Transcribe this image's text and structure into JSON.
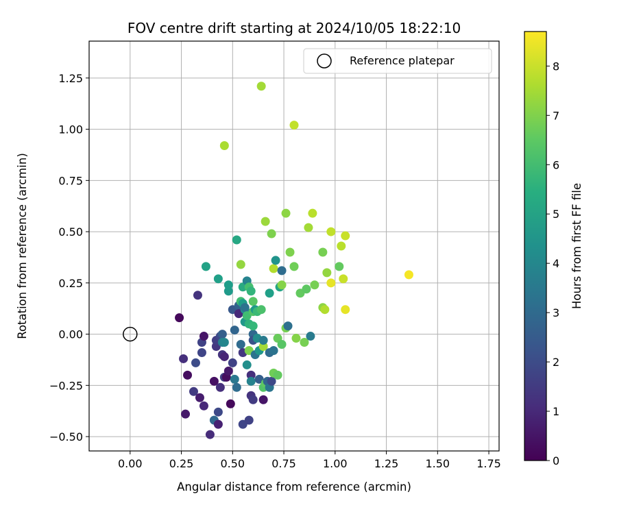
{
  "chart_data": {
    "type": "scatter",
    "title": "FOV centre drift starting at 2024/10/05 18:22:10",
    "xlabel": "Angular distance from reference (arcmin)",
    "ylabel": "Rotation from reference (arcmin)",
    "xlim": [
      -0.2,
      1.8
    ],
    "ylim": [
      -0.57,
      1.43
    ],
    "xticks": [
      "0.00",
      "0.25",
      "0.50",
      "0.75",
      "1.00",
      "1.25",
      "1.50",
      "1.75"
    ],
    "yticks": [
      "−0.50",
      "−0.25",
      "0.00",
      "0.25",
      "0.50",
      "0.75",
      "1.00",
      "1.25"
    ],
    "grid": true,
    "legend": {
      "position": "top-right",
      "label": "Reference platepar",
      "marker": "open-circle"
    },
    "reference_point": {
      "x": 0.0,
      "y": 0.0
    },
    "colorbar": {
      "label": "Hours from first FF file",
      "range": [
        0,
        8.7
      ],
      "ticks": [
        "0",
        "1",
        "2",
        "3",
        "4",
        "5",
        "6",
        "7",
        "8"
      ],
      "colormap": "viridis"
    },
    "points": [
      {
        "x": 0.24,
        "y": 0.08,
        "h": 0.2
      },
      {
        "x": 0.26,
        "y": -0.12,
        "h": 1.2
      },
      {
        "x": 0.27,
        "y": -0.39,
        "h": 0.6
      },
      {
        "x": 0.28,
        "y": -0.2,
        "h": 0.3
      },
      {
        "x": 0.31,
        "y": -0.28,
        "h": 1.5
      },
      {
        "x": 0.32,
        "y": -0.14,
        "h": 2.0
      },
      {
        "x": 0.33,
        "y": 0.19,
        "h": 1.3
      },
      {
        "x": 0.34,
        "y": -0.31,
        "h": 0.7
      },
      {
        "x": 0.35,
        "y": -0.09,
        "h": 1.8
      },
      {
        "x": 0.35,
        "y": -0.04,
        "h": 1.7
      },
      {
        "x": 0.36,
        "y": -0.01,
        "h": 0.5
      },
      {
        "x": 0.36,
        "y": -0.35,
        "h": 1.0
      },
      {
        "x": 0.37,
        "y": 0.33,
        "h": 5.0
      },
      {
        "x": 0.39,
        "y": -0.49,
        "h": 1.1
      },
      {
        "x": 0.41,
        "y": -0.23,
        "h": 0.4
      },
      {
        "x": 0.41,
        "y": -0.42,
        "h": 2.9
      },
      {
        "x": 0.42,
        "y": -0.06,
        "h": 1.4
      },
      {
        "x": 0.42,
        "y": -0.03,
        "h": 1.6
      },
      {
        "x": 0.43,
        "y": -0.38,
        "h": 1.9
      },
      {
        "x": 0.43,
        "y": -0.44,
        "h": 0.8
      },
      {
        "x": 0.43,
        "y": 0.27,
        "h": 4.9
      },
      {
        "x": 0.44,
        "y": -0.26,
        "h": 1.2
      },
      {
        "x": 0.44,
        "y": -0.01,
        "h": 1.9
      },
      {
        "x": 0.45,
        "y": -0.1,
        "h": 1.3
      },
      {
        "x": 0.45,
        "y": 0.0,
        "h": 2.6
      },
      {
        "x": 0.45,
        "y": -0.04,
        "h": 3.8
      },
      {
        "x": 0.46,
        "y": 0.92,
        "h": 7.6
      },
      {
        "x": 0.46,
        "y": -0.04,
        "h": 4.0
      },
      {
        "x": 0.46,
        "y": -0.11,
        "h": 0.9
      },
      {
        "x": 0.46,
        "y": -0.21,
        "h": 1.6
      },
      {
        "x": 0.47,
        "y": -0.21,
        "h": 0.3
      },
      {
        "x": 0.48,
        "y": 0.21,
        "h": 4.7
      },
      {
        "x": 0.48,
        "y": 0.24,
        "h": 4.8
      },
      {
        "x": 0.48,
        "y": -0.18,
        "h": 0.6
      },
      {
        "x": 0.49,
        "y": -0.34,
        "h": 0.2
      },
      {
        "x": 0.5,
        "y": 0.12,
        "h": 2.4
      },
      {
        "x": 0.5,
        "y": -0.14,
        "h": 1.7
      },
      {
        "x": 0.51,
        "y": 0.02,
        "h": 2.8
      },
      {
        "x": 0.51,
        "y": -0.22,
        "h": 3.5
      },
      {
        "x": 0.52,
        "y": -0.26,
        "h": 3.1
      },
      {
        "x": 0.52,
        "y": 0.46,
        "h": 5.2
      },
      {
        "x": 0.53,
        "y": 0.14,
        "h": 2.7
      },
      {
        "x": 0.53,
        "y": 0.1,
        "h": 1.0
      },
      {
        "x": 0.54,
        "y": 0.34,
        "h": 7.3
      },
      {
        "x": 0.54,
        "y": -0.05,
        "h": 3.0
      },
      {
        "x": 0.54,
        "y": 0.16,
        "h": 6.0
      },
      {
        "x": 0.55,
        "y": 0.15,
        "h": 4.8
      },
      {
        "x": 0.55,
        "y": 0.23,
        "h": 5.3
      },
      {
        "x": 0.55,
        "y": -0.09,
        "h": 1.4
      },
      {
        "x": 0.55,
        "y": -0.44,
        "h": 1.8
      },
      {
        "x": 0.56,
        "y": 0.06,
        "h": 5.5
      },
      {
        "x": 0.56,
        "y": 0.12,
        "h": 4.2
      },
      {
        "x": 0.56,
        "y": 0.06,
        "h": 4.6
      },
      {
        "x": 0.56,
        "y": 0.13,
        "h": 3.3
      },
      {
        "x": 0.57,
        "y": 0.26,
        "h": 3.9
      },
      {
        "x": 0.57,
        "y": 0.09,
        "h": 6.0
      },
      {
        "x": 0.57,
        "y": -0.15,
        "h": 4.3
      },
      {
        "x": 0.58,
        "y": 0.05,
        "h": 5.6
      },
      {
        "x": 0.58,
        "y": -0.08,
        "h": 7.0
      },
      {
        "x": 0.58,
        "y": -0.42,
        "h": 1.7
      },
      {
        "x": 0.58,
        "y": 0.23,
        "h": 6.1
      },
      {
        "x": 0.59,
        "y": 0.21,
        "h": 5.7
      },
      {
        "x": 0.59,
        "y": -0.2,
        "h": 1.2
      },
      {
        "x": 0.59,
        "y": -0.23,
        "h": 3.9
      },
      {
        "x": 0.59,
        "y": -0.3,
        "h": 1.3
      },
      {
        "x": 0.6,
        "y": 0.0,
        "h": 2.9
      },
      {
        "x": 0.6,
        "y": 0.11,
        "h": 6.3
      },
      {
        "x": 0.6,
        "y": -0.32,
        "h": 1.5
      },
      {
        "x": 0.6,
        "y": 0.16,
        "h": 6.4
      },
      {
        "x": 0.6,
        "y": 0.04,
        "h": 5.8
      },
      {
        "x": 0.6,
        "y": -0.03,
        "h": 2.2
      },
      {
        "x": 0.61,
        "y": -0.1,
        "h": 3.3
      },
      {
        "x": 0.61,
        "y": 0.12,
        "h": 4.7
      },
      {
        "x": 0.62,
        "y": -0.02,
        "h": 4.2
      },
      {
        "x": 0.62,
        "y": 0.11,
        "h": 5.9
      },
      {
        "x": 0.63,
        "y": -0.08,
        "h": 4.6
      },
      {
        "x": 0.63,
        "y": -0.22,
        "h": 2.6
      },
      {
        "x": 0.64,
        "y": 1.21,
        "h": 7.5
      },
      {
        "x": 0.64,
        "y": 0.12,
        "h": 6.2
      },
      {
        "x": 0.65,
        "y": -0.06,
        "h": 7.5
      },
      {
        "x": 0.65,
        "y": -0.26,
        "h": 6.3
      },
      {
        "x": 0.65,
        "y": -0.03,
        "h": 3.6
      },
      {
        "x": 0.65,
        "y": -0.32,
        "h": 0.5
      },
      {
        "x": 0.66,
        "y": 0.55,
        "h": 7.4
      },
      {
        "x": 0.66,
        "y": -0.24,
        "h": 6.5
      },
      {
        "x": 0.67,
        "y": -0.23,
        "h": 2.8
      },
      {
        "x": 0.68,
        "y": 0.2,
        "h": 4.9
      },
      {
        "x": 0.68,
        "y": -0.26,
        "h": 3.4
      },
      {
        "x": 0.68,
        "y": -0.09,
        "h": 3.0
      },
      {
        "x": 0.69,
        "y": 0.49,
        "h": 7.0
      },
      {
        "x": 0.69,
        "y": -0.23,
        "h": 1.9
      },
      {
        "x": 0.7,
        "y": -0.19,
        "h": 6.8
      },
      {
        "x": 0.7,
        "y": -0.08,
        "h": 3.3
      },
      {
        "x": 0.7,
        "y": 0.32,
        "h": 7.7
      },
      {
        "x": 0.71,
        "y": 0.36,
        "h": 4.5
      },
      {
        "x": 0.72,
        "y": -0.02,
        "h": 6.7
      },
      {
        "x": 0.72,
        "y": -0.2,
        "h": 6.6
      },
      {
        "x": 0.73,
        "y": 0.23,
        "h": 5.1
      },
      {
        "x": 0.74,
        "y": 0.31,
        "h": 3.1
      },
      {
        "x": 0.74,
        "y": -0.05,
        "h": 6.4
      },
      {
        "x": 0.74,
        "y": 0.24,
        "h": 7.1
      },
      {
        "x": 0.76,
        "y": 0.03,
        "h": 6.9
      },
      {
        "x": 0.76,
        "y": 0.59,
        "h": 7.2
      },
      {
        "x": 0.77,
        "y": 0.04,
        "h": 3.2
      },
      {
        "x": 0.78,
        "y": 0.4,
        "h": 7.0
      },
      {
        "x": 0.8,
        "y": 0.33,
        "h": 6.8
      },
      {
        "x": 0.8,
        "y": 1.02,
        "h": 7.9
      },
      {
        "x": 0.81,
        "y": -0.02,
        "h": 7.1
      },
      {
        "x": 0.83,
        "y": 0.2,
        "h": 6.6
      },
      {
        "x": 0.85,
        "y": -0.04,
        "h": 6.9
      },
      {
        "x": 0.86,
        "y": 0.22,
        "h": 6.5
      },
      {
        "x": 0.87,
        "y": 0.52,
        "h": 7.5
      },
      {
        "x": 0.88,
        "y": -0.01,
        "h": 3.6
      },
      {
        "x": 0.89,
        "y": 0.59,
        "h": 7.8
      },
      {
        "x": 0.9,
        "y": 0.24,
        "h": 6.9
      },
      {
        "x": 0.94,
        "y": 0.4,
        "h": 6.9
      },
      {
        "x": 0.94,
        "y": 0.13,
        "h": 7.2
      },
      {
        "x": 0.95,
        "y": 0.12,
        "h": 7.7
      },
      {
        "x": 0.96,
        "y": 0.3,
        "h": 7.3
      },
      {
        "x": 0.98,
        "y": 0.5,
        "h": 7.9
      },
      {
        "x": 0.98,
        "y": 0.25,
        "h": 8.4
      },
      {
        "x": 1.02,
        "y": 0.33,
        "h": 6.6
      },
      {
        "x": 1.03,
        "y": 0.43,
        "h": 7.8
      },
      {
        "x": 1.04,
        "y": 0.27,
        "h": 8.0
      },
      {
        "x": 1.05,
        "y": 0.48,
        "h": 8.0
      },
      {
        "x": 1.05,
        "y": 0.12,
        "h": 8.4
      },
      {
        "x": 1.36,
        "y": 0.29,
        "h": 8.6
      }
    ]
  }
}
